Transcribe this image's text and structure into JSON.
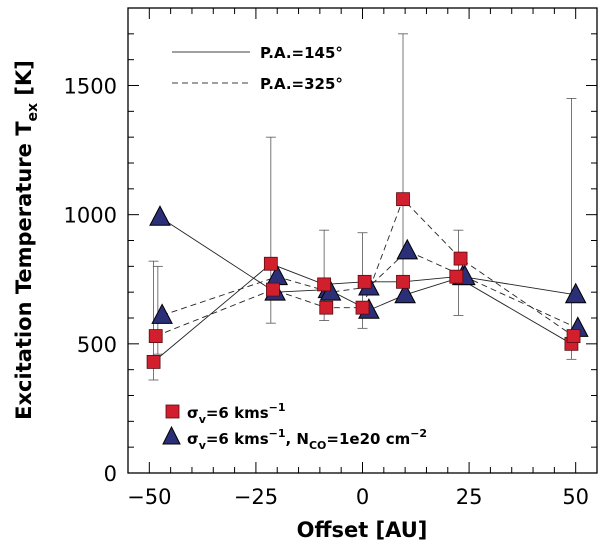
{
  "chart_data": {
    "type": "scatter",
    "xlabel": "Offset [AU]",
    "ylabel_main": "Excitation Temperature T",
    "ylabel_sub": "ex",
    "ylabel_unit": " [K]",
    "xlim": [
      -55,
      55
    ],
    "ylim": [
      0,
      1800
    ],
    "x_ticks": [
      -50,
      -25,
      0,
      25,
      50
    ],
    "x_tick_labels": [
      "−50",
      "−25",
      "0",
      "25",
      "50"
    ],
    "y_ticks": [
      0,
      500,
      1000,
      1500
    ],
    "y_tick_labels": [
      "0",
      "500",
      "1000",
      "1500"
    ],
    "line_legend": [
      {
        "label": "P.A.=145°",
        "style": "solid"
      },
      {
        "label": "P.A.=325°",
        "style": "dashed"
      }
    ],
    "marker_legend": [
      {
        "marker": "square",
        "color": "#d21f2d",
        "text": [
          "σ",
          "v",
          "=6  kms",
          "−1",
          ""
        ]
      },
      {
        "marker": "triangle",
        "color": "#2a2f78",
        "text": [
          "σ",
          "v",
          "=6  kms",
          "−1",
          ", N",
          "CO",
          "=1e20  cm",
          "−2"
        ]
      }
    ],
    "series": [
      {
        "name": "squares P.A.=145°",
        "marker": "square",
        "line": "solid",
        "x": [
          -49,
          -21.5,
          -9,
          0.5,
          9.5,
          22,
          49
        ],
        "y": [
          430,
          810,
          730,
          740,
          740,
          760,
          500
        ],
        "err_up": [
          395,
          null,
          null,
          null,
          null,
          null,
          null
        ]
      },
      {
        "name": "squares P.A.=325°",
        "marker": "square",
        "line": "dashed",
        "x": [
          -48.5,
          -21,
          -8.5,
          0,
          9.5,
          23,
          49.5
        ],
        "y": [
          530,
          710,
          640,
          640,
          1060,
          830,
          530
        ],
        "err_up": [
          null,
          1300,
          940,
          null,
          1700,
          null,
          1450
        ]
      },
      {
        "name": "triangles P.A.=145°",
        "marker": "triangle",
        "line": "solid",
        "x": [
          -47.5,
          -20.5,
          -8,
          1.5,
          10,
          23.5,
          50
        ],
        "y": [
          990,
          700,
          710,
          630,
          690,
          760,
          690
        ],
        "err_up": [
          null,
          null,
          null,
          null,
          null,
          null,
          null
        ]
      },
      {
        "name": "triangles P.A.=325°",
        "marker": "triangle",
        "line": "dashed",
        "x": [
          -47,
          -20,
          -7.5,
          1.5,
          10.5,
          24,
          50.5
        ],
        "y": [
          610,
          760,
          700,
          720,
          860,
          760,
          560
        ],
        "err_up": [
          null,
          null,
          null,
          null,
          null,
          null,
          null
        ]
      }
    ],
    "error_bars": [
      {
        "x": -49,
        "low": 360,
        "high": 820
      },
      {
        "x": -48,
        "low": 460,
        "high": 800
      },
      {
        "x": -21.5,
        "low": 580,
        "high": 1300
      },
      {
        "x": -9,
        "low": 590,
        "high": 940
      },
      {
        "x": 0,
        "low": 560,
        "high": 930
      },
      {
        "x": 9.5,
        "low": 660,
        "high": 1700
      },
      {
        "x": 22.5,
        "low": 610,
        "high": 940
      },
      {
        "x": 49,
        "low": 440,
        "high": 1450
      }
    ]
  }
}
